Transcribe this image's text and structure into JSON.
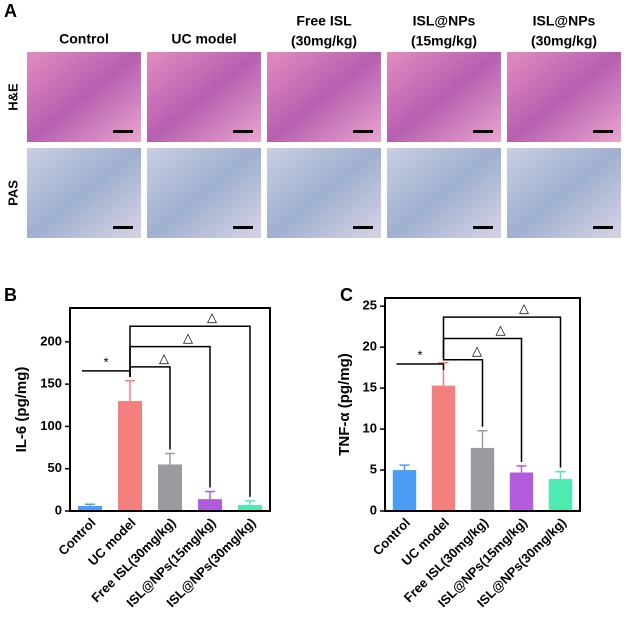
{
  "panel_labels": [
    "A",
    "B",
    "C"
  ],
  "histology": {
    "columns": [
      [
        "Control"
      ],
      [
        "UC model"
      ],
      [
        "Free ISL",
        "(30mg/kg)"
      ],
      [
        "ISL@NPs",
        "(15mg/kg)"
      ],
      [
        "ISL@NPs",
        "(30mg/kg)"
      ]
    ],
    "rows": [
      "H&E",
      "PAS"
    ]
  },
  "chart_data": [
    {
      "type": "bar",
      "y_label": "IL-6 (pg/mg)",
      "categories": [
        "Control",
        "UC model",
        "Free ISL(30mg/kg)",
        "ISL@NPs(15mg/kg)",
        "ISL@NPs(30mg/kg)"
      ],
      "values": [
        6,
        130,
        55,
        14,
        7
      ],
      "errors": [
        2,
        24,
        13,
        9,
        5
      ],
      "colors": [
        "#4a9cf5",
        "#f47f7f",
        "#9a9aa0",
        "#b45bdc",
        "#4deab2"
      ],
      "ylim": [
        0,
        240
      ],
      "yticks": [
        0,
        50,
        100,
        150,
        200
      ],
      "annotations": [
        "*",
        "△",
        "△",
        "△"
      ]
    },
    {
      "type": "bar",
      "y_label": "TNF-α (pg/mg)",
      "categories": [
        "Control",
        "UC model",
        "Free ISL(30mg/kg)",
        "ISL@NPs(15mg/kg)",
        "ISL@NPs(30mg/kg)"
      ],
      "values": [
        5,
        15.3,
        7.7,
        4.7,
        3.9
      ],
      "errors": [
        0.6,
        2.8,
        2.1,
        0.8,
        0.9
      ],
      "colors": [
        "#4a9cf5",
        "#f47f7f",
        "#9a9aa0",
        "#b45bdc",
        "#4deab2"
      ],
      "ylim": [
        0,
        26
      ],
      "yticks": [
        0,
        5,
        10,
        15,
        20,
        25
      ],
      "annotations": [
        "*",
        "△",
        "△",
        "△"
      ]
    }
  ]
}
